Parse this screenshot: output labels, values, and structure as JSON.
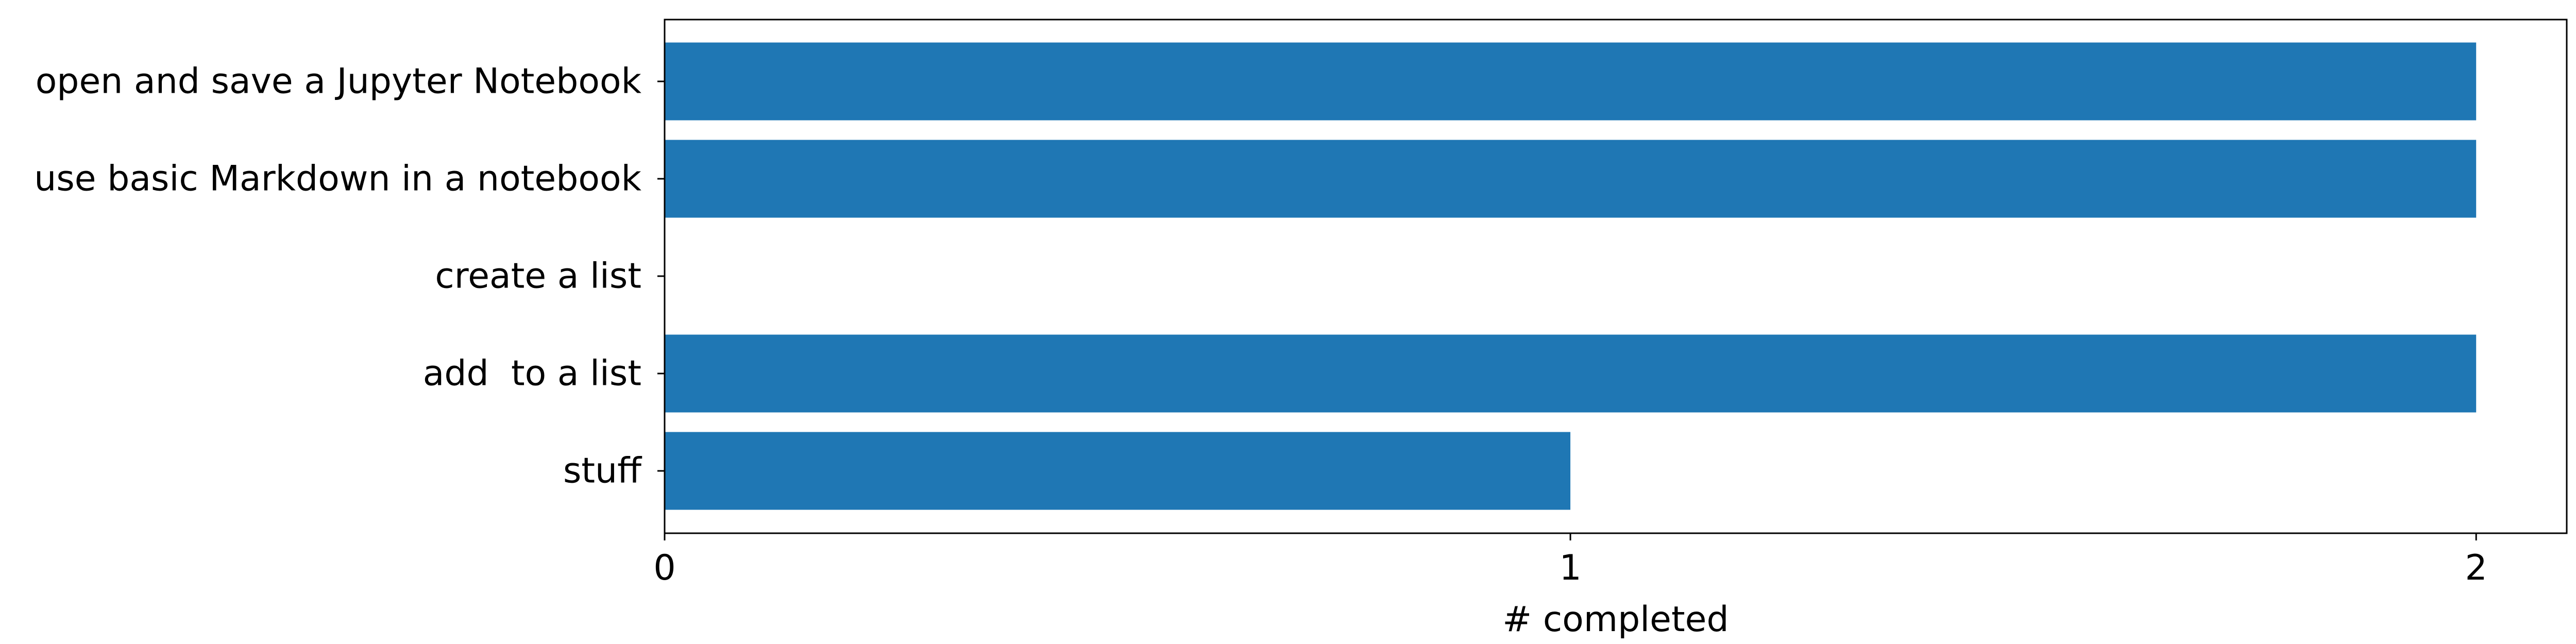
{
  "chart_data": {
    "type": "bar",
    "orientation": "horizontal",
    "categories": [
      "open and save a Jupyter Notebook",
      "use basic Markdown in a notebook",
      "create a list",
      "add  to a list",
      "stuff"
    ],
    "values": [
      2,
      2,
      0,
      2,
      1
    ],
    "xlabel": "# completed",
    "ylabel": "",
    "title": "",
    "xlim": [
      0,
      2.1
    ],
    "xticks": [
      0,
      1,
      2
    ],
    "xtick_labels": [
      "0",
      "1",
      "2"
    ],
    "bar_color": "#1f77b4",
    "grid": false,
    "legend": "none"
  }
}
